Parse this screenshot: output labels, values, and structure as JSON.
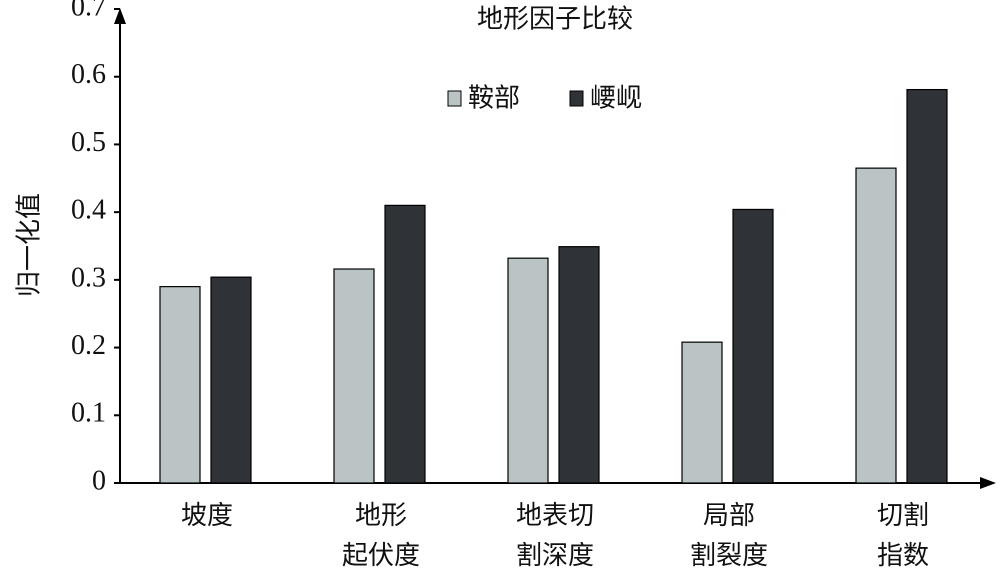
{
  "chart_data": {
    "type": "bar",
    "title": "地形因子比较",
    "y_label": "归一化值",
    "categories": [
      "坡度",
      "地形\n起伏度",
      "地表切\n割深度",
      "局部\n割裂度",
      "切割\n指数"
    ],
    "series": [
      {
        "name": "鞍部",
        "color": "#bac4c5",
        "values": [
          0.29,
          0.316,
          0.332,
          0.208,
          0.465
        ]
      },
      {
        "name": "崾岘",
        "color": "#2f3338",
        "values": [
          0.304,
          0.41,
          0.349,
          0.404,
          0.581
        ]
      }
    ],
    "ylim": [
      0,
      0.7
    ],
    "yticks": [
      0,
      0.1,
      0.2,
      0.3,
      0.4,
      0.5,
      0.6,
      0.7
    ]
  }
}
